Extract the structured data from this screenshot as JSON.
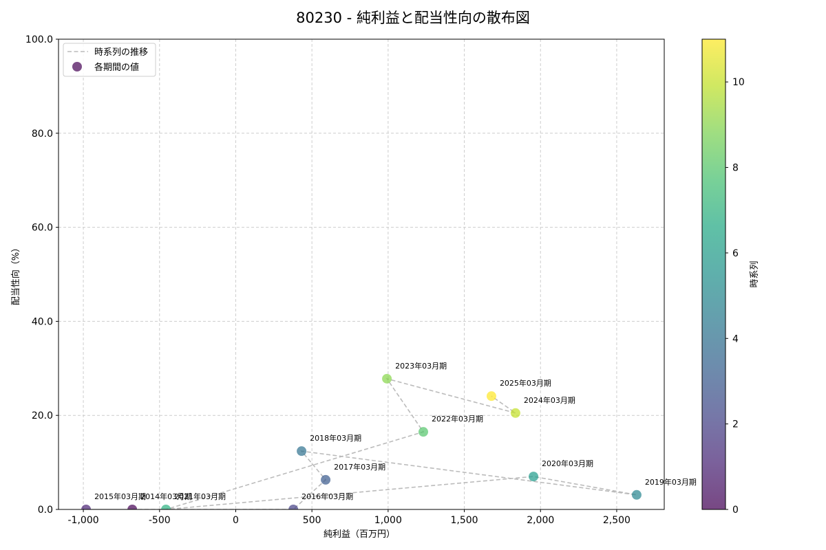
{
  "chart_data": {
    "type": "scatter",
    "title": "80230 - 純利益と配当性向の散布図",
    "xlabel": "純利益（百万円）",
    "ylabel": "配当性向（%）",
    "xlim": [
      -1163,
      2812
    ],
    "ylim": [
      0,
      100
    ],
    "x_ticks": [
      -1000,
      -500,
      0,
      500,
      1000,
      1500,
      2000,
      2500
    ],
    "x_tick_labels": [
      "-1,000",
      "-500",
      "0",
      "500",
      "1,000",
      "1,500",
      "2,000",
      "2,500"
    ],
    "y_ticks": [
      0,
      20,
      40,
      60,
      80,
      100
    ],
    "y_tick_labels": [
      "0.0",
      "20.0",
      "40.0",
      "60.0",
      "80.0",
      "100.0"
    ],
    "grid": true,
    "legend": {
      "position": "upper left",
      "entries": [
        {
          "label": "時系列の推移",
          "marker": "dashed-line",
          "color": "#bbbbbb"
        },
        {
          "label": "各期間の値",
          "marker": "circle",
          "color": "#6a3d7a"
        }
      ]
    },
    "colorbar": {
      "label": "時系列",
      "range": [
        0,
        11
      ],
      "ticks": [
        0,
        2,
        4,
        6,
        8,
        10
      ],
      "colormap": "viridis"
    },
    "points": [
      {
        "period": "2014年03月期",
        "index": 0,
        "x": -679,
        "y": 0.0,
        "color": "#440154"
      },
      {
        "period": "2015年03月期",
        "index": 1,
        "x": -982,
        "y": 0.0,
        "color": "#482173"
      },
      {
        "period": "2016年03月期",
        "index": 2,
        "x": 378,
        "y": 0.0,
        "color": "#433e85"
      },
      {
        "period": "2017年03月期",
        "index": 3,
        "x": 590,
        "y": 6.3,
        "color": "#38588c"
      },
      {
        "period": "2018年03月期",
        "index": 4,
        "x": 432,
        "y": 12.4,
        "color": "#2d708e"
      },
      {
        "period": "2019年03月期",
        "index": 5,
        "x": 2631,
        "y": 3.1,
        "color": "#25858e"
      },
      {
        "period": "2020年03月期",
        "index": 6,
        "x": 1954,
        "y": 7.0,
        "color": "#1e9b8a"
      },
      {
        "period": "2021年03月期",
        "index": 7,
        "x": -458,
        "y": 0.0,
        "color": "#2ab07f"
      },
      {
        "period": "2022年03月期",
        "index": 8,
        "x": 1231,
        "y": 16.5,
        "color": "#52c569"
      },
      {
        "period": "2023年03月期",
        "index": 9,
        "x": 992,
        "y": 27.8,
        "color": "#86d549"
      },
      {
        "period": "2024年03月期",
        "index": 10,
        "x": 1836,
        "y": 20.5,
        "color": "#c2df23"
      },
      {
        "period": "2025年03月期",
        "index": 11,
        "x": 1678,
        "y": 24.1,
        "color": "#fde725"
      }
    ]
  }
}
